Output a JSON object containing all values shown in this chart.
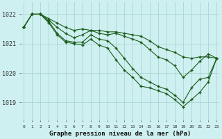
{
  "title": "Graphe pression niveau de la mer (hPa)",
  "background_color": "#cff0f0",
  "grid_color": "#aad4d4",
  "line_color": "#1a5c1a",
  "x_labels": [
    "0",
    "1",
    "2",
    "3",
    "4",
    "5",
    "6",
    "7",
    "8",
    "9",
    "10",
    "11",
    "12",
    "13",
    "14",
    "15",
    "16",
    "17",
    "18",
    "19",
    "20",
    "21",
    "22",
    "23"
  ],
  "ylim": [
    1018.4,
    1022.4
  ],
  "yticks": [
    1019,
    1020,
    1021,
    1022
  ],
  "lines": [
    [
      1021.55,
      1022.0,
      1022.0,
      1021.85,
      1021.7,
      1021.55,
      1021.45,
      1021.5,
      1021.45,
      1021.45,
      1021.4,
      1021.4,
      1021.35,
      1021.3,
      1021.25,
      1021.1,
      1020.9,
      1020.8,
      1020.7,
      1020.55,
      1020.5,
      1020.55,
      1020.55,
      1020.5
    ],
    [
      1021.55,
      1022.0,
      1022.0,
      1021.8,
      1021.55,
      1021.35,
      1021.2,
      1021.3,
      1021.45,
      1021.35,
      1021.3,
      1021.35,
      1021.25,
      1021.15,
      1021.05,
      1020.8,
      1020.55,
      1020.45,
      1020.25,
      1019.85,
      1020.1,
      1020.4,
      1020.65,
      1020.5
    ],
    [
      1021.55,
      1022.0,
      1022.0,
      1021.75,
      1021.35,
      1021.1,
      1021.05,
      1021.05,
      1021.3,
      1021.15,
      1021.1,
      1020.85,
      1020.5,
      1020.15,
      1019.85,
      1019.7,
      1019.55,
      1019.45,
      1019.25,
      1019.0,
      1019.5,
      1019.8,
      1019.85,
      1020.5
    ],
    [
      1021.55,
      1022.0,
      1022.0,
      1021.7,
      1021.3,
      1021.05,
      1021.0,
      1020.95,
      1021.15,
      1020.95,
      1020.85,
      1020.45,
      1020.1,
      1019.85,
      1019.55,
      1019.5,
      1019.4,
      1019.3,
      1019.1,
      1018.85,
      1019.1,
      1019.35,
      1019.7,
      1020.5
    ]
  ]
}
